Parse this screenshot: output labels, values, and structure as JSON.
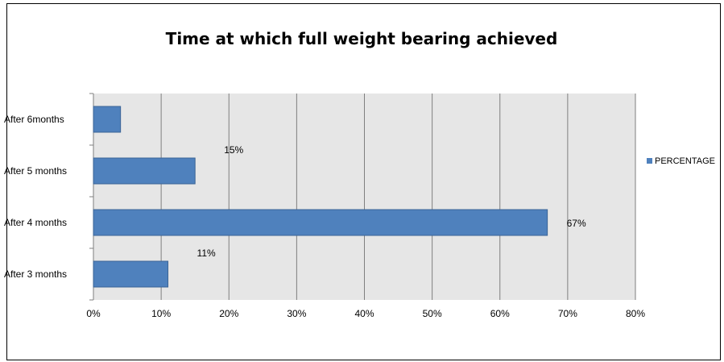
{
  "chart_data": {
    "type": "bar",
    "orientation": "horizontal",
    "title": "Time at which full weight bearing achieved",
    "categories": [
      "After 3 months",
      "After 4 months",
      "After 5 months",
      "After 6months"
    ],
    "series": [
      {
        "name": "PERCENTAGE",
        "values": [
          11,
          67,
          15,
          4
        ],
        "data_labels": [
          "11%",
          "67%",
          "15%",
          ""
        ],
        "color": "#4f81bd"
      }
    ],
    "xlim": [
      0,
      80
    ],
    "x_ticks": [
      "0%",
      "10%",
      "20%",
      "30%",
      "40%",
      "50%",
      "60%",
      "70%",
      "80%"
    ],
    "grid": true,
    "plot_background": "#e6e6e6",
    "legend_position": "right"
  }
}
